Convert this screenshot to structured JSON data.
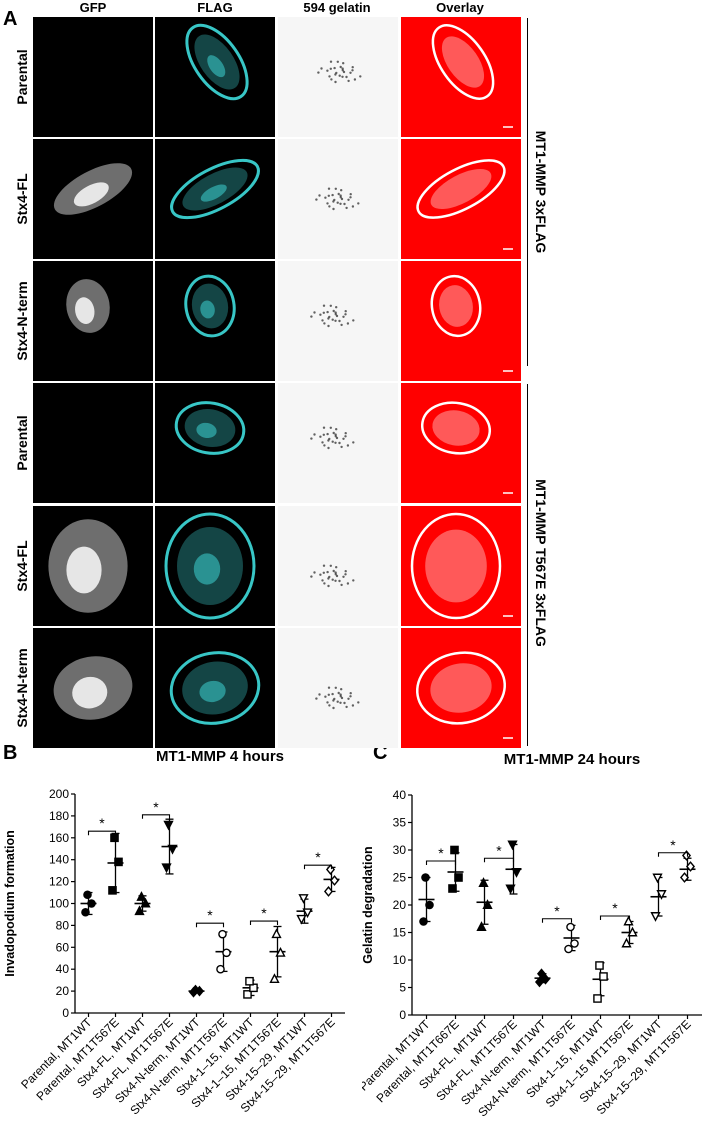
{
  "panels": {
    "a_label": "A",
    "b_label": "B",
    "c_label": "C"
  },
  "micrograph": {
    "columns": [
      "GFP",
      "FLAG",
      "594 gelatin",
      "Overlay"
    ],
    "rows": [
      "Parental",
      "Stx4-FL",
      "Stx4-N-term",
      "Parental",
      "Stx4-FL",
      "Stx4-N-term"
    ],
    "groups": [
      "MT1-MMP 3xFLAG",
      "MT1-MMP T567E 3xFLAG"
    ],
    "colors": {
      "flag": "#38c6c6",
      "overlay": "#ff0000"
    }
  },
  "chart_data": [
    {
      "type": "scatter",
      "title": "MT1-MMP 4 hours",
      "ylabel": "Invadopodium formation",
      "ylim": [
        0,
        200
      ],
      "yticks": [
        0,
        20,
        40,
        60,
        80,
        100,
        120,
        140,
        160,
        180,
        200
      ],
      "categories": [
        "Parental, MT1WT",
        "Parental, MT1T567E",
        "Stx4-FL, MT1WT",
        "Stx4-FL, MT1T567E",
        "Stx4-N-term, MT1WT",
        "Stx4-N-term, MT1T567E",
        "Stx4-1–15, MT1WT",
        "Stx4-1–15, MT1T567E",
        "Stx4-15–29, MT1WT",
        "Stx4-15–29, MT1T567E"
      ],
      "markers": [
        "circle-filled",
        "square-filled",
        "triangle-filled",
        "triangle-down-filled",
        "diamond-filled",
        "circle-open",
        "square-open",
        "triangle-open",
        "triangle-down-open",
        "diamond-open"
      ],
      "points": [
        [
          92,
          100,
          108
        ],
        [
          112,
          138,
          160
        ],
        [
          93,
          100,
          106
        ],
        [
          133,
          150,
          172
        ],
        [
          19,
          20,
          21
        ],
        [
          40,
          55,
          72
        ],
        [
          17,
          23,
          29
        ],
        [
          31,
          55,
          72
        ],
        [
          86,
          92,
          105
        ],
        [
          111,
          121,
          131
        ]
      ],
      "means": [
        100,
        137,
        100,
        152,
        20,
        56,
        23,
        56,
        93,
        122
      ],
      "sd": [
        10,
        27,
        7,
        25,
        1,
        18,
        7,
        23,
        11,
        11
      ],
      "significance": [
        {
          "from": 0,
          "to": 1,
          "y": 166,
          "label": "*"
        },
        {
          "from": 2,
          "to": 3,
          "y": 181,
          "label": "*"
        },
        {
          "from": 4,
          "to": 5,
          "y": 82,
          "label": "*"
        },
        {
          "from": 6,
          "to": 7,
          "y": 84,
          "label": "*"
        },
        {
          "from": 8,
          "to": 9,
          "y": 135,
          "label": "*"
        }
      ]
    },
    {
      "type": "scatter",
      "title": "MT1-MMP 24 hours",
      "ylabel": "Gelatin degradation",
      "ylim": [
        0,
        40
      ],
      "yticks": [
        0,
        5,
        10,
        15,
        20,
        25,
        30,
        35,
        40
      ],
      "categories": [
        "Parental, MT1WT",
        "Parental, MT1T667E",
        "Stx4-FL, MT1WT",
        "Stx4-FL, MT1T567E",
        "Stx4-N-term, MT1WT",
        "Stx4-N-term, MT1T567E",
        "Stx4-1–15, MT1WT",
        "Stx4-1–15 MT1T567E",
        "Stx4-15–29, MT1WT",
        "Stx4-15–29, MT1T567E"
      ],
      "markers": [
        "circle-filled",
        "square-filled",
        "triangle-filled",
        "triangle-down-filled",
        "diamond-filled",
        "circle-open",
        "square-open",
        "triangle-open",
        "triangle-down-open",
        "diamond-open"
      ],
      "points": [
        [
          17,
          20,
          25
        ],
        [
          23,
          25,
          30
        ],
        [
          16,
          20,
          24
        ],
        [
          23,
          26,
          31
        ],
        [
          6,
          6.5,
          7.5
        ],
        [
          12,
          13,
          16
        ],
        [
          3,
          7,
          9
        ],
        [
          13,
          15,
          17
        ],
        [
          18,
          22,
          25
        ],
        [
          25,
          27,
          29
        ]
      ],
      "means": [
        21,
        26,
        20.5,
        26.5,
        6.7,
        14,
        6.5,
        15,
        21.5,
        26.5
      ],
      "sd": [
        4,
        3.5,
        4,
        4.5,
        0.8,
        2.3,
        3,
        2,
        3.5,
        2
      ],
      "significance": [
        {
          "from": 0,
          "to": 1,
          "y": 28,
          "label": "*"
        },
        {
          "from": 2,
          "to": 3,
          "y": 28.5,
          "label": "*"
        },
        {
          "from": 4,
          "to": 5,
          "y": 17.5,
          "label": "*"
        },
        {
          "from": 6,
          "to": 7,
          "y": 18,
          "label": "*"
        },
        {
          "from": 8,
          "to": 9,
          "y": 29.5,
          "label": "*"
        }
      ]
    }
  ]
}
